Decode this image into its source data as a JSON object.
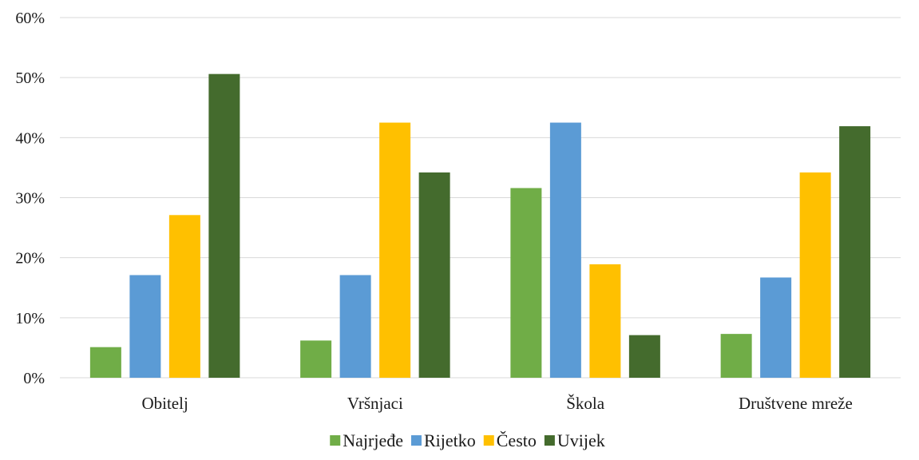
{
  "chart_data": {
    "type": "bar",
    "categories": [
      "Obitelj",
      "Vršnjaci",
      "Škola",
      "Društvene mreže"
    ],
    "series": [
      {
        "name": "Najrjeđe",
        "color": "#70ad47",
        "values": [
          5.1,
          6.2,
          31.6,
          7.3
        ]
      },
      {
        "name": "Rijetko",
        "color": "#5b9bd5",
        "values": [
          17.1,
          17.1,
          42.5,
          16.7
        ]
      },
      {
        "name": "Često",
        "color": "#ffc000",
        "values": [
          27.1,
          42.5,
          18.9,
          34.2
        ]
      },
      {
        "name": "Uvijek",
        "color": "#446b2d",
        "values": [
          50.6,
          34.2,
          7.1,
          41.9
        ]
      }
    ],
    "ylim": [
      0,
      60
    ],
    "yticks": [
      0,
      10,
      20,
      30,
      40,
      50,
      60
    ],
    "ytick_labels": [
      "0%",
      "10%",
      "20%",
      "30%",
      "40%",
      "50%",
      "60%"
    ],
    "grid": true,
    "legend_position": "bottom",
    "gridline_color": "#d9d9d9"
  }
}
